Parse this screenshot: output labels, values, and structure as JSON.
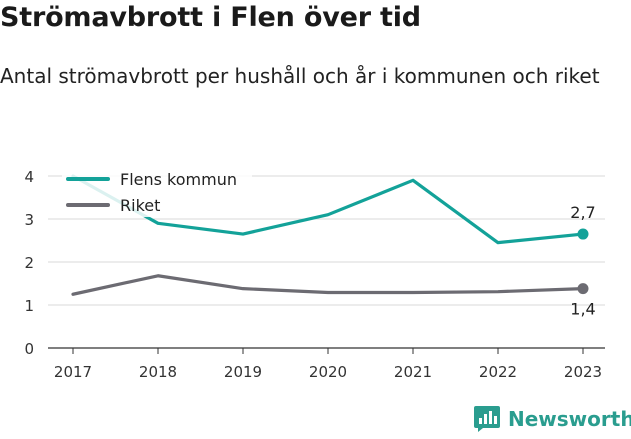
{
  "header": {
    "title": "Strömavbrott i Flen över tid",
    "subtitle": "Antal strömavbrott per hushåll och år i kommunen och riket"
  },
  "brand": {
    "name": "Newsworthy"
  },
  "chart_data": {
    "type": "line",
    "x": [
      "2017",
      "2018",
      "2019",
      "2020",
      "2021",
      "2022",
      "2023"
    ],
    "yticks": [
      "0",
      "1",
      "2",
      "3",
      "4"
    ],
    "ylim": [
      0,
      4
    ],
    "grid": true,
    "legend_position": "top-left",
    "series": [
      {
        "name": "Flens kommun",
        "color": "#13a299",
        "values": [
          4.0,
          2.9,
          2.65,
          3.1,
          3.9,
          2.45,
          2.65
        ],
        "end_label": "2,7"
      },
      {
        "name": "Riket",
        "color": "#6c6b72",
        "values": [
          1.25,
          1.68,
          1.38,
          1.29,
          1.29,
          1.31,
          1.38
        ],
        "end_label": "1,4"
      }
    ]
  }
}
